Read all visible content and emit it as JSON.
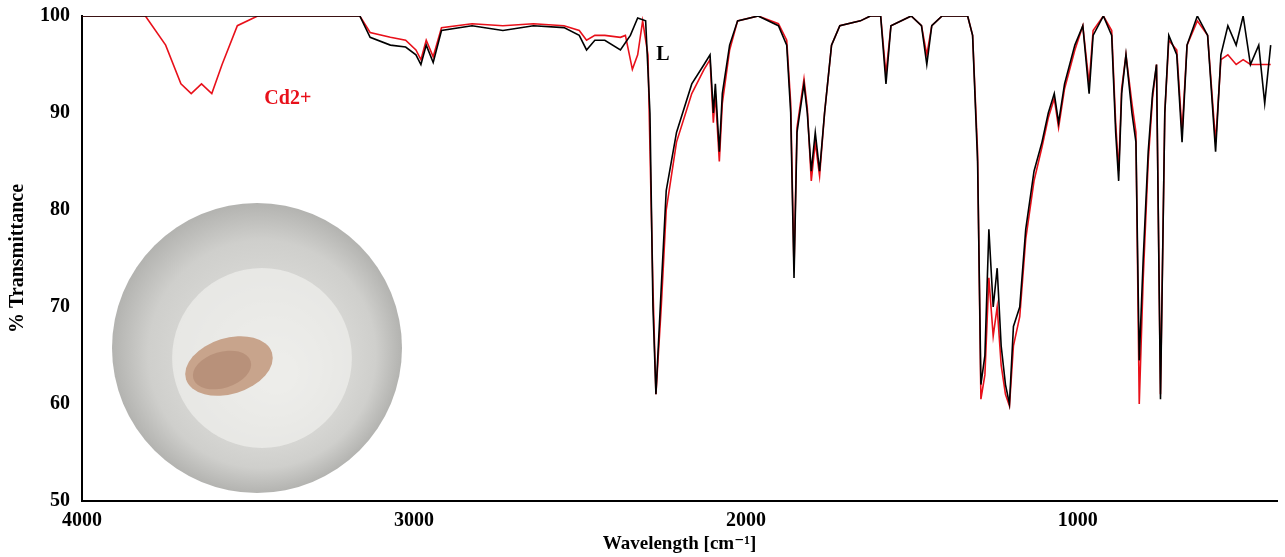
{
  "chart_data": {
    "type": "line",
    "x_label": "Wavelength [cm⁻¹]",
    "y_label": "% Transmittance",
    "xlim": [
      4000,
      400
    ],
    "xticks": [
      4000,
      3000,
      2000,
      1000
    ],
    "ylim": [
      50,
      100
    ],
    "yticks": [
      50,
      60,
      70,
      80,
      90,
      100
    ],
    "grid": false,
    "annotations": [
      {
        "text": "Cd2+",
        "x": 3380,
        "y": 91.5,
        "color": "#e8101a"
      },
      {
        "text": "L",
        "x": 2250,
        "y": 96,
        "color": "#000000"
      }
    ],
    "series": [
      {
        "name": "L",
        "color": "#000000",
        "x": [
          4000,
          3163,
          3132,
          3071,
          3025,
          2994,
          2979,
          2963,
          2942,
          2917,
          2825,
          2732,
          2640,
          2548,
          2502,
          2480,
          2455,
          2425,
          2378,
          2348,
          2326,
          2302,
          2289,
          2280,
          2271,
          2255,
          2240,
          2209,
          2163,
          2126,
          2108,
          2098,
          2092,
          2080,
          2071,
          2049,
          2025,
          1963,
          1902,
          1877,
          1865,
          1855,
          1846,
          1825,
          1815,
          1803,
          1791,
          1778,
          1763,
          1742,
          1717,
          1655,
          1625,
          1594,
          1578,
          1563,
          1502,
          1471,
          1455,
          1440,
          1409,
          1332,
          1317,
          1302,
          1292,
          1280,
          1268,
          1255,
          1243,
          1231,
          1218,
          1206,
          1194,
          1175,
          1157,
          1132,
          1108,
          1089,
          1071,
          1058,
          1040,
          1009,
          985,
          966,
          954,
          923,
          898,
          886,
          877,
          868,
          855,
          837,
          825,
          815,
          803,
          788,
          775,
          763,
          751,
          738,
          726,
          702,
          686,
          671,
          640,
          609,
          585,
          569,
          548,
          523,
          502,
          480,
          455,
          437,
          419
        ],
        "values": [
          100,
          100,
          97.8,
          97,
          96.8,
          96,
          95,
          97,
          95.2,
          98.5,
          99,
          98.5,
          99,
          98.8,
          98,
          96.5,
          97.5,
          97.5,
          96.5,
          98,
          99.8,
          99.5,
          90,
          70,
          61,
          72,
          82,
          88,
          93,
          95,
          96,
          90,
          93,
          86,
          92,
          97,
          99.5,
          100,
          99,
          97,
          90,
          73,
          88,
          93,
          90,
          84,
          88,
          84,
          90,
          97,
          99,
          99.5,
          100,
          100,
          93,
          99,
          100,
          99,
          95,
          99,
          100,
          100,
          98,
          85,
          62,
          65,
          78,
          70,
          74,
          66,
          62,
          60,
          68,
          70,
          78,
          84,
          87,
          90,
          92,
          89,
          93,
          97,
          99,
          92,
          98,
          100,
          98,
          88,
          83,
          92,
          96,
          90,
          87,
          64.5,
          75,
          86,
          92,
          95,
          60.5,
          90,
          98,
          96,
          87,
          97,
          100,
          98,
          86,
          96,
          99,
          97,
          100,
          95,
          97,
          91,
          97
        ]
      },
      {
        "name": "Cd2+",
        "color": "#e8101a",
        "x": [
          4000,
          3809,
          3748,
          3702,
          3671,
          3640,
          3609,
          3578,
          3532,
          3471,
          3163,
          3132,
          3071,
          3025,
          2994,
          2979,
          2963,
          2942,
          2917,
          2825,
          2732,
          2640,
          2548,
          2502,
          2480,
          2455,
          2425,
          2378,
          2363,
          2342,
          2326,
          2311,
          2295,
          2280,
          2271,
          2255,
          2240,
          2209,
          2163,
          2126,
          2108,
          2098,
          2092,
          2080,
          2071,
          2049,
          2025,
          1963,
          1902,
          1877,
          1865,
          1855,
          1846,
          1825,
          1815,
          1803,
          1791,
          1778,
          1763,
          1742,
          1717,
          1655,
          1625,
          1594,
          1578,
          1563,
          1502,
          1471,
          1455,
          1440,
          1409,
          1332,
          1317,
          1302,
          1292,
          1280,
          1268,
          1255,
          1243,
          1231,
          1218,
          1206,
          1194,
          1175,
          1157,
          1132,
          1108,
          1089,
          1071,
          1058,
          1040,
          1009,
          985,
          966,
          954,
          923,
          898,
          886,
          877,
          868,
          855,
          837,
          825,
          815,
          803,
          788,
          775,
          763,
          751,
          738,
          726,
          702,
          686,
          671,
          640,
          609,
          585,
          569,
          548,
          523,
          502,
          480,
          455,
          437,
          419
        ],
        "values": [
          100,
          100,
          97,
          93,
          92,
          93,
          92,
          95,
          99,
          100,
          100,
          98.3,
          97.8,
          97.5,
          96.5,
          95.5,
          97.5,
          95.8,
          98.8,
          99.2,
          99,
          99.2,
          99,
          98.5,
          97.5,
          98,
          98,
          97.8,
          98,
          94.5,
          96,
          99.5,
          96,
          72,
          61,
          70,
          80,
          87,
          92,
          94.5,
          95.5,
          89,
          92,
          85,
          91,
          96.5,
          99.5,
          100,
          99.2,
          97.5,
          91,
          74,
          88.5,
          93.5,
          90.5,
          83,
          87,
          83.5,
          90,
          97,
          99,
          99.5,
          100,
          100,
          94,
          99,
          100,
          99,
          96,
          99,
          100,
          100,
          98,
          86,
          60.5,
          63,
          73,
          67,
          70,
          64,
          61,
          59.8,
          66,
          69,
          77,
          83,
          86.5,
          89.5,
          91.5,
          88.5,
          92.5,
          96.5,
          99,
          93,
          98.5,
          100,
          98.5,
          89,
          84,
          92.5,
          96,
          91,
          88,
          60,
          73,
          85,
          91.5,
          95,
          61,
          90,
          97.5,
          96.5,
          88,
          97,
          99.5,
          98,
          87,
          95.5,
          96,
          95,
          95.5,
          95,
          95,
          95,
          95
        ]
      }
    ]
  }
}
